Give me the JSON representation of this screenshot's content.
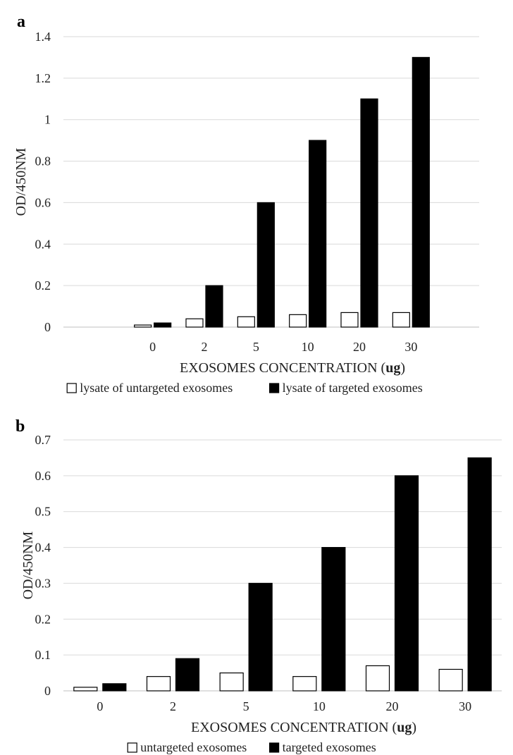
{
  "chart_data": [
    {
      "type": "bar",
      "panel_label": "a",
      "categories": [
        "0",
        "2",
        "5",
        "10",
        "20",
        "30"
      ],
      "series": [
        {
          "name": "lysate of untargeted exosomes",
          "color": "#ffffff",
          "values": [
            0.01,
            0.04,
            0.05,
            0.06,
            0.07,
            0.07
          ]
        },
        {
          "name": "lysate of targeted exosomes",
          "color": "#000000",
          "values": [
            0.02,
            0.2,
            0.6,
            0.9,
            1.1,
            1.3
          ]
        }
      ],
      "xlabel": "EXOSOMES CONCENTRATION (ug)",
      "ylabel": "OD/450NM",
      "ylim": [
        0,
        1.4
      ],
      "yticks": [
        "0",
        "0.2",
        "0.4",
        "0.6",
        "0.8",
        "1",
        "1.2",
        "1.4"
      ],
      "grid": true,
      "legend_position": "bottom"
    },
    {
      "type": "bar",
      "panel_label": "b",
      "categories": [
        "0",
        "2",
        "5",
        "10",
        "20",
        "30"
      ],
      "series": [
        {
          "name": "untargeted exosomes",
          "color": "#ffffff",
          "values": [
            0.01,
            0.04,
            0.05,
            0.04,
            0.07,
            0.06
          ]
        },
        {
          "name": "targeted exosomes",
          "color": "#000000",
          "values": [
            0.02,
            0.09,
            0.3,
            0.4,
            0.6,
            0.65
          ]
        }
      ],
      "xlabel": "EXOSOMES CONCENTRATION (ug)",
      "ylabel": "OD/450NM",
      "ylim": [
        0,
        0.7
      ],
      "yticks": [
        "0",
        "0.1",
        "0.2",
        "0.3",
        "0.4",
        "0.5",
        "0.6",
        "0.7"
      ],
      "grid": true,
      "legend_position": "bottom"
    }
  ]
}
